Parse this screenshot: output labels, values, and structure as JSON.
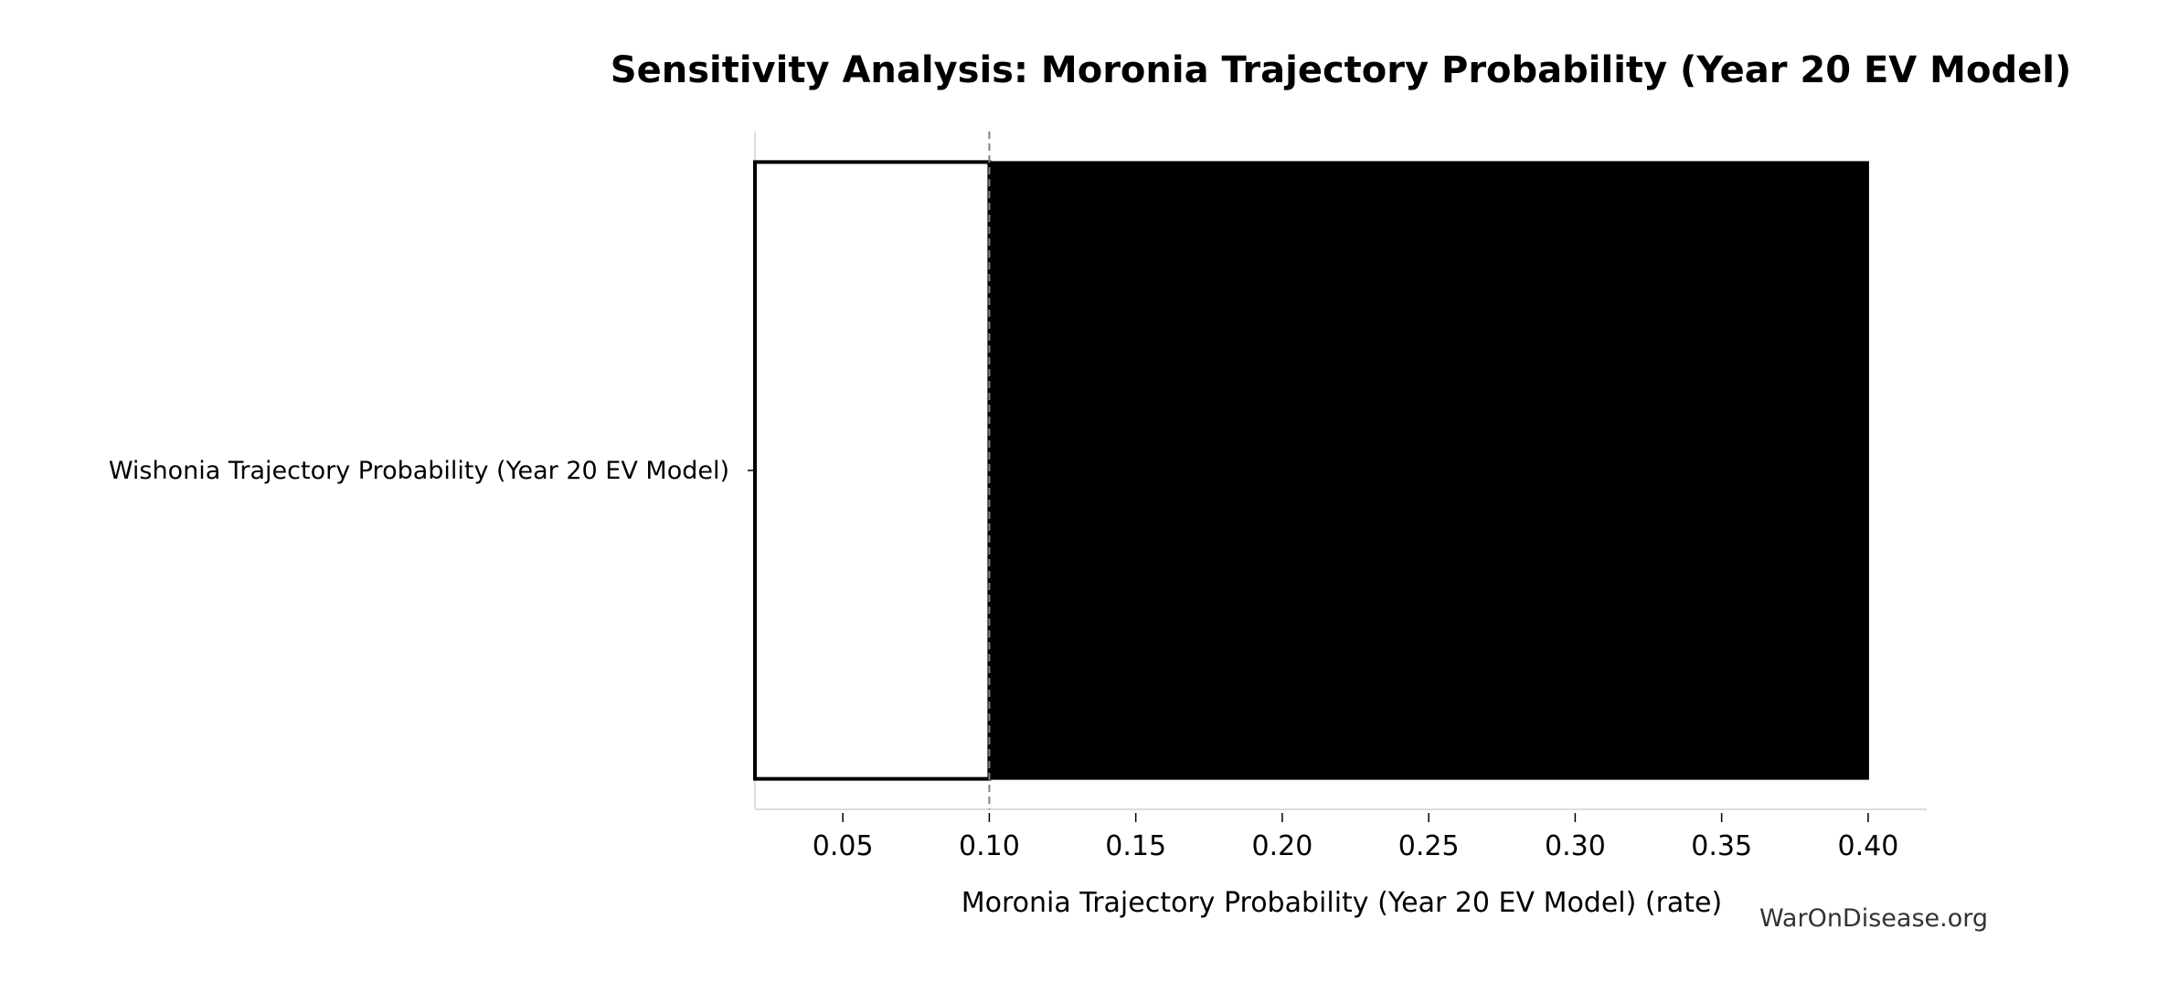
{
  "chart_data": {
    "type": "bar",
    "orientation": "horizontal",
    "variant": "tornado",
    "title": "Sensitivity Analysis: Moronia Trajectory Probability (Year 20 EV Model)",
    "xlabel": "Moronia Trajectory Probability (Year 20 EV Model) (rate)",
    "ylabel": "",
    "categories": [
      "Wishonia Trajectory Probability (Year 20 EV Model)"
    ],
    "baseline": 0.1,
    "bars": [
      {
        "category": "Wishonia Trajectory Probability (Year 20 EV Model)",
        "low": 0.02,
        "high": 0.4
      }
    ],
    "xlim": [
      0.02,
      0.42
    ],
    "xticks": [
      0.05,
      0.1,
      0.15,
      0.2,
      0.25,
      0.3,
      0.35,
      0.4
    ],
    "xtick_labels": [
      "0.05",
      "0.10",
      "0.15",
      "0.20",
      "0.25",
      "0.30",
      "0.35",
      "0.40"
    ],
    "grid": false,
    "colors": {
      "low_fill": "#ffffff",
      "high_fill": "#000000",
      "edge": "#000000",
      "baseline_line": "#808080",
      "spine": "#dddddd"
    }
  },
  "watermark": "WarOnDisease.org"
}
